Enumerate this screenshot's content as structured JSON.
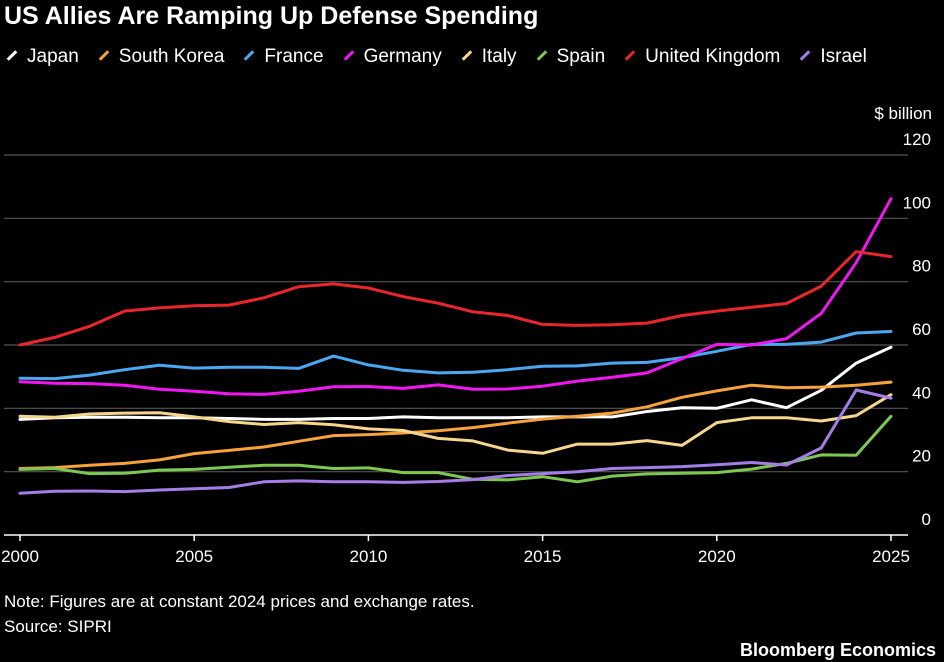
{
  "colors": {
    "background": "#000000",
    "grid": "#555555",
    "axis": "#ffffff",
    "text": "#ffffff"
  },
  "chart_data": {
    "type": "line",
    "title": "US Allies Are Ramping Up Defense Spending",
    "ylabel": "$ billion",
    "xlabel": "",
    "xlim": [
      2000,
      2025
    ],
    "ylim": [
      0,
      120
    ],
    "x": [
      2000,
      2001,
      2002,
      2003,
      2004,
      2005,
      2006,
      2007,
      2008,
      2009,
      2010,
      2011,
      2012,
      2013,
      2014,
      2015,
      2016,
      2017,
      2018,
      2019,
      2020,
      2021,
      2022,
      2023,
      2024,
      2025
    ],
    "x_ticks": [
      2000,
      2005,
      2010,
      2015,
      2020,
      2025
    ],
    "y_ticks": [
      0,
      20,
      40,
      60,
      80,
      100,
      120
    ],
    "grid": true,
    "series": [
      {
        "name": "Japan",
        "color": "#ffffff",
        "values": [
          36.5,
          37,
          37.2,
          37.2,
          37,
          37,
          36.8,
          36.5,
          36.5,
          36.8,
          36.8,
          37.3,
          37,
          37,
          37,
          37.3,
          37.3,
          37.3,
          39,
          40.2,
          40,
          42.7,
          40.2,
          45.7,
          54.3,
          59.3
        ]
      },
      {
        "name": "South Korea",
        "color": "#f5a33a",
        "values": [
          21,
          21.3,
          22,
          22.6,
          23.7,
          25.7,
          26.7,
          27.8,
          29.6,
          31.4,
          31.7,
          32.2,
          32.9,
          33.9,
          35.3,
          36.6,
          37.5,
          38.5,
          40.5,
          43.5,
          45.5,
          47.3,
          46.5,
          46.7,
          47.3,
          48.3
        ]
      },
      {
        "name": "France",
        "color": "#4aa8f0",
        "values": [
          49.5,
          49.4,
          50.5,
          52.2,
          53.6,
          52.7,
          53,
          53,
          52.6,
          56.5,
          53.7,
          52,
          51.2,
          51.4,
          52.2,
          53.3,
          53.4,
          54.3,
          54.5,
          56,
          58,
          60.2,
          60.2,
          60.9,
          63.8,
          64.3
        ]
      },
      {
        "name": "Germany",
        "color": "#f017f0",
        "values": [
          48.4,
          47.9,
          47.8,
          47.3,
          46,
          45.4,
          44.6,
          44.4,
          45.4,
          46.8,
          46.9,
          46.3,
          47.4,
          46,
          46.1,
          47,
          48.6,
          49.8,
          51.2,
          55.7,
          60.2,
          60,
          62,
          70,
          86,
          106.2
        ]
      },
      {
        "name": "Italy",
        "color": "#f5d68c",
        "values": [
          37.5,
          37.2,
          38.2,
          38.5,
          38.6,
          37.3,
          35.8,
          34.9,
          35.5,
          34.8,
          33.5,
          33,
          30.5,
          29.7,
          26.8,
          25.8,
          28.7,
          28.7,
          29.8,
          28.3,
          35.5,
          37,
          37,
          36,
          37.7,
          44.3
        ]
      },
      {
        "name": "Spain",
        "color": "#7ec850",
        "values": [
          20.7,
          21,
          19.4,
          19.5,
          20.5,
          20.7,
          21.4,
          22,
          22,
          21,
          21.2,
          19.7,
          19.7,
          17.6,
          17.4,
          18.4,
          16.8,
          18.6,
          19.3,
          19.5,
          19.7,
          20.8,
          22.6,
          25.3,
          25.2,
          37.5
        ]
      },
      {
        "name": "United Kingdom",
        "color": "#e8262b",
        "values": [
          60,
          62.4,
          65.9,
          70.7,
          71.7,
          72.4,
          72.6,
          74.9,
          78.4,
          79.3,
          78,
          75.3,
          73.2,
          70.5,
          69.3,
          66.5,
          66.2,
          66.4,
          66.9,
          69.3,
          70.7,
          71.9,
          73.1,
          78.6,
          89.5,
          87.9
        ]
      },
      {
        "name": "Israel",
        "color": "#a47ee6",
        "values": [
          13.2,
          13.8,
          13.9,
          13.7,
          14.2,
          14.6,
          15,
          16.8,
          17.1,
          16.8,
          16.8,
          16.6,
          16.9,
          17.5,
          18.8,
          19.4,
          20,
          21,
          21.3,
          21.6,
          22.2,
          22.9,
          22.1,
          27.5,
          45.8,
          43.2
        ]
      }
    ]
  },
  "footer": {
    "note": "Note: Figures are at constant 2024 prices and exchange rates.",
    "source": "Source: SIPRI",
    "brand": "Bloomberg Economics"
  }
}
